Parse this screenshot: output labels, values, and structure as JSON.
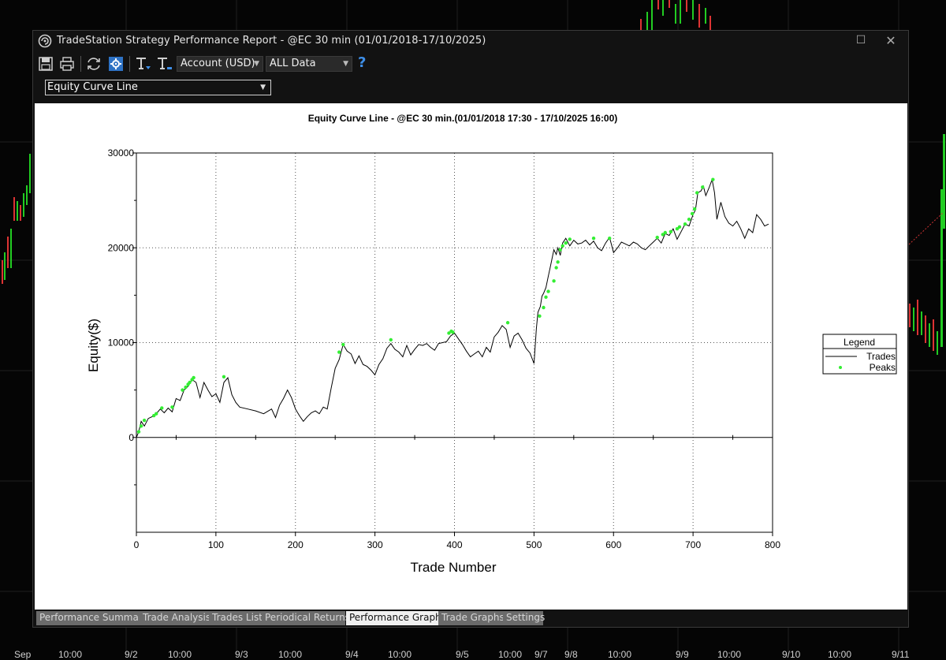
{
  "background": {
    "date_labels": [
      "Sep",
      "10:00",
      "9/2",
      "10:00",
      "9/3",
      "10:00",
      "9/4",
      "10:00",
      "9/5",
      "10:00",
      "9/7",
      "9/8",
      "10:00",
      "9/9",
      "10:00",
      "9/10",
      "10:00",
      "9/11"
    ]
  },
  "window": {
    "title": "TradeStation Strategy Performance Report - @EC 30 min (01/01/2018-17/10/2025)",
    "maximize_symbol": "☐",
    "close_symbol": "✕"
  },
  "toolbar": {
    "icons": [
      "save-icon",
      "print-icon",
      "refresh-icon",
      "settings-icon",
      "text-format-icon",
      "text-style-icon"
    ],
    "account_select": "Account (USD)",
    "data_select": "ALL Data",
    "help_symbol": "?"
  },
  "view_select": "Equity Curve Line",
  "tabs": [
    {
      "label": "Performance Summary",
      "active": false
    },
    {
      "label": "Trade Analysis",
      "active": false
    },
    {
      "label": "Trades List",
      "active": false
    },
    {
      "label": "Periodical Returns",
      "active": false
    },
    {
      "label": "Performance Graphs",
      "active": true
    },
    {
      "label": "Trade Graphs",
      "active": false
    },
    {
      "label": "Settings",
      "active": false
    }
  ],
  "colors": {
    "line": "#000000",
    "peaks": "#33ee33",
    "grid": "#555555",
    "accent": "#3e8fe8"
  },
  "chart_data": {
    "type": "line",
    "title": "Equity Curve Line - @EC 30 min.(01/01/2018 17:30 - 17/10/2025 16:00)",
    "xlabel": "Trade Number",
    "ylabel": "Equity($)",
    "xlim": [
      0,
      800
    ],
    "ylim": [
      -10000,
      30000
    ],
    "xticks": [
      0,
      100,
      200,
      300,
      400,
      500,
      600,
      700,
      800
    ],
    "yticks": [
      0,
      10000,
      20000,
      30000
    ],
    "grid": true,
    "legend": {
      "title": "Legend",
      "placement": "right",
      "entries": [
        "Trades",
        "Peaks"
      ]
    },
    "series": [
      {
        "name": "Trades",
        "x": [
          0,
          3,
          6,
          10,
          15,
          20,
          25,
          30,
          35,
          40,
          45,
          50,
          55,
          60,
          65,
          70,
          75,
          80,
          85,
          90,
          95,
          100,
          105,
          110,
          115,
          120,
          125,
          130,
          140,
          150,
          160,
          170,
          175,
          180,
          185,
          190,
          195,
          200,
          205,
          210,
          215,
          220,
          225,
          230,
          235,
          240,
          245,
          250,
          255,
          260,
          265,
          270,
          275,
          280,
          285,
          290,
          295,
          300,
          305,
          310,
          315,
          320,
          325,
          330,
          335,
          340,
          345,
          350,
          355,
          360,
          365,
          370,
          375,
          380,
          385,
          390,
          395,
          400,
          405,
          410,
          415,
          420,
          425,
          430,
          435,
          440,
          445,
          450,
          455,
          460,
          465,
          470,
          475,
          480,
          485,
          490,
          495,
          500,
          503,
          505,
          508,
          510,
          512,
          515,
          518,
          520,
          522,
          525,
          528,
          530,
          533,
          536,
          540,
          545,
          550,
          555,
          560,
          565,
          570,
          575,
          580,
          585,
          590,
          595,
          600,
          605,
          610,
          615,
          620,
          625,
          630,
          635,
          640,
          645,
          650,
          655,
          660,
          665,
          670,
          675,
          680,
          685,
          690,
          695,
          700,
          703,
          706,
          710,
          713,
          716,
          720,
          724,
          727,
          730,
          735,
          740,
          745,
          750,
          755,
          760,
          765,
          770,
          775,
          780,
          785,
          790,
          795
        ],
        "y": [
          0,
          600,
          1700,
          1200,
          2000,
          2200,
          2500,
          3000,
          2600,
          3100,
          2700,
          4100,
          3900,
          5000,
          5400,
          6100,
          5800,
          4200,
          5800,
          5000,
          4300,
          4600,
          3700,
          5800,
          6300,
          4500,
          3700,
          3200,
          3000,
          2800,
          2500,
          3000,
          2100,
          3400,
          4100,
          5000,
          4200,
          3000,
          2300,
          1700,
          2200,
          2600,
          2800,
          2500,
          3200,
          3000,
          5200,
          7300,
          8200,
          9800,
          9100,
          8800,
          7800,
          8600,
          7700,
          7500,
          7100,
          6600,
          7700,
          8300,
          9400,
          9900,
          9300,
          9000,
          8500,
          9700,
          8700,
          9300,
          9800,
          9700,
          9900,
          9500,
          9200,
          9900,
          10000,
          10100,
          10700,
          11000,
          10400,
          9800,
          9100,
          8500,
          8800,
          9100,
          8500,
          9500,
          9000,
          10600,
          11100,
          11800,
          11400,
          9500,
          10700,
          11000,
          10300,
          9400,
          8900,
          7800,
          11500,
          13200,
          13800,
          14900,
          15200,
          15800,
          17000,
          17800,
          18600,
          19800,
          19300,
          20000,
          19200,
          20500,
          21000,
          20200,
          20800,
          20400,
          20500,
          20800,
          20300,
          20700,
          20000,
          19700,
          20500,
          21100,
          19500,
          20000,
          20600,
          20400,
          20200,
          20600,
          20400,
          20000,
          19800,
          20200,
          20600,
          21000,
          20500,
          21500,
          21300,
          22000,
          20900,
          21700,
          22500,
          22300,
          23500,
          24000,
          25800,
          26000,
          26500,
          25500,
          26300,
          27200,
          25800,
          23000,
          24800,
          23300,
          22600,
          22300,
          22800,
          22000,
          21000,
          22000,
          21600,
          23500,
          23000,
          22300,
          22500
        ]
      },
      {
        "name": "Peaks",
        "x": [
          3,
          6,
          10,
          22,
          25,
          32,
          45,
          58,
          62,
          65,
          67,
          70,
          72,
          110,
          255,
          260,
          320,
          393,
          396,
          398,
          467,
          507,
          512,
          515,
          518,
          525,
          528,
          530,
          533,
          536,
          540,
          545,
          575,
          595,
          655,
          662,
          665,
          672,
          680,
          683,
          690,
          695,
          699,
          702,
          705,
          712,
          725
        ],
        "y": [
          600,
          1200,
          1800,
          2300,
          2500,
          3100,
          3200,
          5000,
          5300,
          5600,
          5800,
          6100,
          6300,
          6400,
          9000,
          9800,
          10300,
          11000,
          11200,
          11100,
          12100,
          12800,
          13700,
          14800,
          15400,
          16500,
          17900,
          18500,
          19800,
          20200,
          20500,
          20900,
          21000,
          21000,
          21100,
          21400,
          21600,
          21700,
          22000,
          22200,
          22500,
          23000,
          23600,
          24100,
          25800,
          26400,
          27200
        ]
      }
    ]
  }
}
